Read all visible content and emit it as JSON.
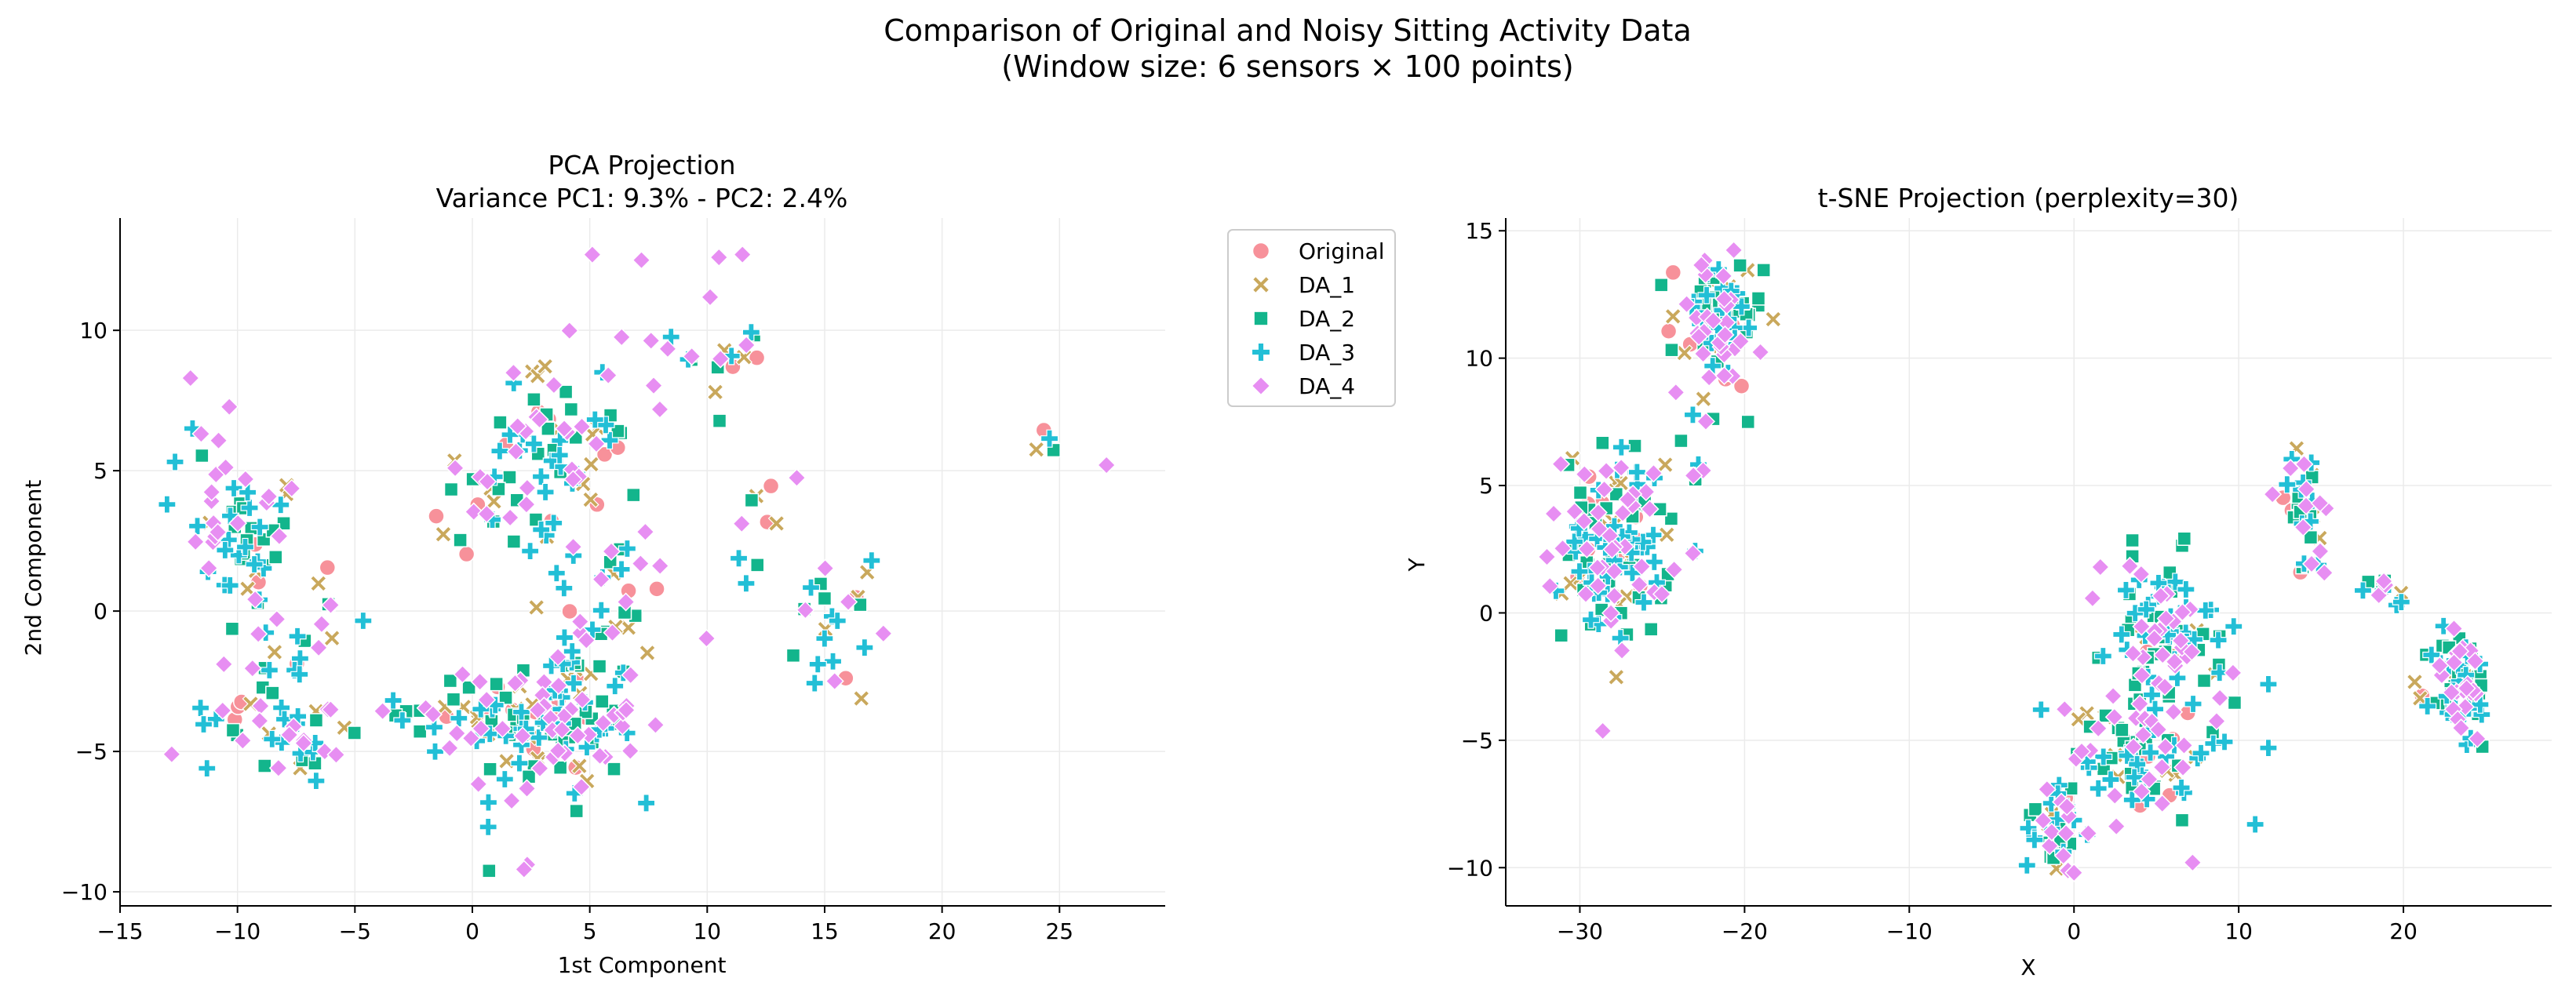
{
  "figure": {
    "title_line1": "Comparison of Original and Noisy Sitting Activity Data",
    "title_line2": "(Window size: 6 sensors × 100 points)"
  },
  "colors": {
    "Original": "#f7919a",
    "DA_1": "#c9a85c",
    "DA_2": "#13b58c",
    "DA_3": "#22bfd6",
    "DA_4": "#e78ef2",
    "grid": "#ebebeb",
    "axis": "#000000"
  },
  "legend": {
    "placement": "between-panels-top",
    "entries": [
      {
        "name": "Original",
        "marker": "circle"
      },
      {
        "name": "DA_1",
        "marker": "x"
      },
      {
        "name": "DA_2",
        "marker": "square"
      },
      {
        "name": "DA_3",
        "marker": "plus"
      },
      {
        "name": "DA_4",
        "marker": "diamond"
      }
    ]
  },
  "chart_data": [
    {
      "type": "scatter",
      "id": "pca",
      "title_line1": "PCA Projection",
      "title_line2": "Variance PC1: 9.3% - PC2: 2.4%",
      "xlabel": "1st Component",
      "ylabel": "2nd Component",
      "xlim": [
        -15,
        29.5
      ],
      "ylim": [
        -10.5,
        14
      ],
      "xticks": [
        -15,
        -10,
        -5,
        0,
        5,
        10,
        15,
        20,
        25
      ],
      "yticks": [
        -10,
        -5,
        0,
        5,
        10
      ],
      "grid": true,
      "clusters": [
        {
          "cx": -9.5,
          "cy": 2.5,
          "sx": 1.2,
          "sy": 1.3,
          "n": 55,
          "w": {
            "Original": 0.06,
            "DA_1": 0.09,
            "DA_2": 0.25,
            "DA_3": 0.32,
            "DA_4": 0.28
          }
        },
        {
          "cx": -9.2,
          "cy": -2.8,
          "sx": 1.3,
          "sy": 1.6,
          "n": 32,
          "w": {
            "Original": 0.06,
            "DA_1": 0.1,
            "DA_2": 0.22,
            "DA_3": 0.3,
            "DA_4": 0.32
          }
        },
        {
          "cx": -7.0,
          "cy": -4.6,
          "sx": 1.1,
          "sy": 1.2,
          "n": 22,
          "w": {
            "Original": 0.06,
            "DA_1": 0.12,
            "DA_2": 0.2,
            "DA_3": 0.32,
            "DA_4": 0.3
          }
        },
        {
          "cx": -6.5,
          "cy": -0.5,
          "sx": 0.8,
          "sy": 1.0,
          "n": 10,
          "w": {
            "Original": 0.05,
            "DA_1": 0.15,
            "DA_2": 0.2,
            "DA_3": 0.3,
            "DA_4": 0.3
          }
        },
        {
          "cx": -11.5,
          "cy": 5.5,
          "sx": 0.8,
          "sy": 1.3,
          "n": 8,
          "w": {
            "Original": 0.0,
            "DA_1": 0.0,
            "DA_2": 0.1,
            "DA_3": 0.3,
            "DA_4": 0.6
          }
        },
        {
          "cx": 3.5,
          "cy": -3.8,
          "sx": 1.8,
          "sy": 1.3,
          "n": 140,
          "w": {
            "Original": 0.07,
            "DA_1": 0.12,
            "DA_2": 0.27,
            "DA_3": 0.27,
            "DA_4": 0.27
          }
        },
        {
          "cx": -0.8,
          "cy": -3.6,
          "sx": 1.2,
          "sy": 0.9,
          "n": 22,
          "w": {
            "Original": 0.07,
            "DA_1": 0.13,
            "DA_2": 0.25,
            "DA_3": 0.3,
            "DA_4": 0.25
          }
        },
        {
          "cx": 2.8,
          "cy": 6.5,
          "sx": 1.2,
          "sy": 1.1,
          "n": 40,
          "w": {
            "Original": 0.08,
            "DA_1": 0.12,
            "DA_2": 0.28,
            "DA_3": 0.26,
            "DA_4": 0.26
          }
        },
        {
          "cx": 1.2,
          "cy": 3.8,
          "sx": 1.3,
          "sy": 0.9,
          "n": 30,
          "w": {
            "Original": 0.1,
            "DA_1": 0.16,
            "DA_2": 0.24,
            "DA_3": 0.25,
            "DA_4": 0.25
          }
        },
        {
          "cx": 5.0,
          "cy": 5.0,
          "sx": 1.0,
          "sy": 1.0,
          "n": 20,
          "w": {
            "Original": 0.15,
            "DA_1": 0.2,
            "DA_2": 0.2,
            "DA_3": 0.2,
            "DA_4": 0.25
          }
        },
        {
          "cx": 5.5,
          "cy": 0.5,
          "sx": 1.6,
          "sy": 1.3,
          "n": 32,
          "w": {
            "Original": 0.12,
            "DA_1": 0.15,
            "DA_2": 0.2,
            "DA_3": 0.25,
            "DA_4": 0.28
          }
        },
        {
          "cx": 11.0,
          "cy": 9.2,
          "sx": 0.8,
          "sy": 0.6,
          "n": 14,
          "w": {
            "Original": 0.2,
            "DA_1": 0.18,
            "DA_2": 0.22,
            "DA_3": 0.2,
            "DA_4": 0.2
          }
        },
        {
          "cx": 12.5,
          "cy": 3.0,
          "sx": 0.9,
          "sy": 0.8,
          "n": 12,
          "w": {
            "Original": 0.2,
            "DA_1": 0.2,
            "DA_2": 0.2,
            "DA_3": 0.2,
            "DA_4": 0.2
          }
        },
        {
          "cx": 15.3,
          "cy": -0.8,
          "sx": 0.7,
          "sy": 1.1,
          "n": 22,
          "w": {
            "Original": 0.08,
            "DA_1": 0.2,
            "DA_2": 0.22,
            "DA_3": 0.3,
            "DA_4": 0.2
          }
        },
        {
          "cx": 24.5,
          "cy": 6.0,
          "sx": 0.5,
          "sy": 0.3,
          "n": 5,
          "w": {
            "Original": 0.2,
            "DA_1": 0.2,
            "DA_2": 0.2,
            "DA_3": 0.3,
            "DA_4": 0.1
          }
        },
        {
          "cx": 7.5,
          "cy": 9.0,
          "sx": 3.5,
          "sy": 2.0,
          "n": 14,
          "w": {
            "Original": 0.0,
            "DA_1": 0.0,
            "DA_2": 0.15,
            "DA_3": 0.2,
            "DA_4": 0.65
          }
        },
        {
          "cx": 3.0,
          "cy": -6.5,
          "sx": 2.5,
          "sy": 1.5,
          "n": 12,
          "w": {
            "Original": 0.0,
            "DA_1": 0.0,
            "DA_2": 0.1,
            "DA_3": 0.3,
            "DA_4": 0.6
          }
        }
      ],
      "outliers": [
        {
          "s": "DA_3",
          "x": -13.0,
          "y": 3.8
        },
        {
          "s": "DA_4",
          "x": 27.0,
          "y": 5.2
        },
        {
          "s": "DA_4",
          "x": 11.5,
          "y": 12.7
        },
        {
          "s": "DA_4",
          "x": 7.2,
          "y": 12.5
        },
        {
          "s": "DA_4",
          "x": 10.5,
          "y": 12.6
        },
        {
          "s": "DA_4",
          "x": 2.2,
          "y": -9.2
        },
        {
          "s": "DA_4",
          "x": 17.5,
          "y": -0.8
        },
        {
          "s": "DA_3",
          "x": 17.0,
          "y": 1.8
        },
        {
          "s": "DA_4",
          "x": -12.0,
          "y": 8.3
        },
        {
          "s": "DA_3",
          "x": 16.7,
          "y": -1.3
        },
        {
          "s": "DA_4",
          "x": -12.8,
          "y": -5.1
        },
        {
          "s": "DA_3",
          "x": -11.3,
          "y": -5.6
        }
      ]
    },
    {
      "type": "scatter",
      "id": "tsne",
      "title_line1": "t-SNE Projection (perplexity=30)",
      "title_line2": "",
      "xlabel": "X",
      "ylabel": "Y",
      "xlim": [
        -34.5,
        29
      ],
      "ylim": [
        -11.5,
        15.5
      ],
      "xticks": [
        -30,
        -20,
        -10,
        0,
        10,
        20
      ],
      "yticks": [
        -10,
        -5,
        0,
        5,
        10,
        15
      ],
      "grid": true,
      "clusters": [
        {
          "cx": -27.8,
          "cy": 2.7,
          "sx": 1.6,
          "sy": 1.9,
          "n": 160,
          "w": {
            "Original": 0.08,
            "DA_1": 0.14,
            "DA_2": 0.26,
            "DA_3": 0.27,
            "DA_4": 0.25
          }
        },
        {
          "cx": -21.7,
          "cy": 11.4,
          "sx": 1.4,
          "sy": 1.3,
          "n": 95,
          "w": {
            "Original": 0.07,
            "DA_1": 0.12,
            "DA_2": 0.27,
            "DA_3": 0.25,
            "DA_4": 0.29
          }
        },
        {
          "cx": 5.2,
          "cy": -1.0,
          "sx": 1.6,
          "sy": 1.6,
          "n": 100,
          "w": {
            "Original": 0.04,
            "DA_1": 0.09,
            "DA_2": 0.28,
            "DA_3": 0.31,
            "DA_4": 0.28
          }
        },
        {
          "cx": 4.0,
          "cy": -5.5,
          "sx": 2.0,
          "sy": 1.3,
          "n": 85,
          "w": {
            "Original": 0.05,
            "DA_1": 0.12,
            "DA_2": 0.27,
            "DA_3": 0.3,
            "DA_4": 0.26
          }
        },
        {
          "cx": -1.2,
          "cy": -8.5,
          "sx": 0.9,
          "sy": 0.9,
          "n": 40,
          "w": {
            "Original": 0.05,
            "DA_1": 0.1,
            "DA_2": 0.27,
            "DA_3": 0.3,
            "DA_4": 0.28
          }
        },
        {
          "cx": 23.5,
          "cy": -3.0,
          "sx": 0.9,
          "sy": 1.2,
          "n": 80,
          "w": {
            "Original": 0.04,
            "DA_1": 0.1,
            "DA_2": 0.28,
            "DA_3": 0.3,
            "DA_4": 0.28
          }
        },
        {
          "cx": 14.0,
          "cy": 4.8,
          "sx": 0.8,
          "sy": 0.8,
          "n": 28,
          "w": {
            "Original": 0.06,
            "DA_1": 0.12,
            "DA_2": 0.22,
            "DA_3": 0.3,
            "DA_4": 0.3
          }
        },
        {
          "cx": 14.5,
          "cy": 2.3,
          "sx": 0.6,
          "sy": 0.6,
          "n": 10,
          "w": {
            "Original": 0.05,
            "DA_1": 0.1,
            "DA_2": 0.25,
            "DA_3": 0.3,
            "DA_4": 0.3
          }
        },
        {
          "cx": 18.8,
          "cy": 0.6,
          "sx": 0.8,
          "sy": 0.4,
          "n": 10,
          "w": {
            "Original": 0.0,
            "DA_1": 0.05,
            "DA_2": 0.3,
            "DA_3": 0.35,
            "DA_4": 0.3
          }
        },
        {
          "cx": 9.5,
          "cy": -2.5,
          "sx": 0.6,
          "sy": 1.2,
          "n": 10,
          "w": {
            "Original": 0.0,
            "DA_1": 0.1,
            "DA_2": 0.3,
            "DA_3": 0.3,
            "DA_4": 0.3
          }
        },
        {
          "cx": -23.0,
          "cy": 6.5,
          "sx": 1.2,
          "sy": 1.0,
          "n": 8,
          "w": {
            "Original": 0.0,
            "DA_1": 0.1,
            "DA_2": 0.2,
            "DA_3": 0.3,
            "DA_4": 0.4
          }
        }
      ],
      "outliers": [
        {
          "s": "DA_4",
          "x": -32.0,
          "y": 2.2
        },
        {
          "s": "DA_1",
          "x": -22.5,
          "y": 8.4
        },
        {
          "s": "DA_3",
          "x": 11.8,
          "y": -5.3
        },
        {
          "s": "DA_3",
          "x": 11.0,
          "y": -8.3
        },
        {
          "s": "DA_4",
          "x": 7.2,
          "y": -9.8
        },
        {
          "s": "DA_3",
          "x": 11.8,
          "y": -2.8
        },
        {
          "s": "DA_4",
          "x": 0.0,
          "y": -10.2
        },
        {
          "s": "DA_4",
          "x": 1.6,
          "y": 1.8
        },
        {
          "s": "DA_3",
          "x": -2.0,
          "y": -3.8
        }
      ]
    }
  ]
}
